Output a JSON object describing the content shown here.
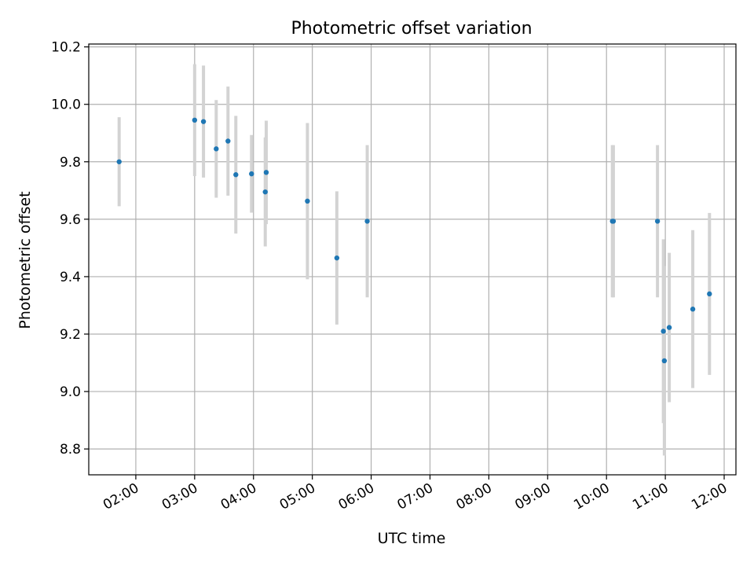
{
  "chart_data": {
    "type": "scatter",
    "title": "Photometric offset variation",
    "xlabel": "UTC time",
    "ylabel": "Photometric offset",
    "xlim": [
      "01:12",
      "12:12"
    ],
    "ylim": [
      8.71,
      10.21
    ],
    "grid": true,
    "x_ticks": [
      "02:00",
      "03:00",
      "04:00",
      "05:00",
      "06:00",
      "07:00",
      "08:00",
      "09:00",
      "10:00",
      "11:00",
      "12:00"
    ],
    "y_ticks": [
      "8.8",
      "9.0",
      "9.2",
      "9.4",
      "9.6",
      "9.8",
      "10.0",
      "10.2"
    ],
    "series": [
      {
        "marker_color": "#1f77b4",
        "errorbar_color": "#d3d3d3",
        "points": [
          {
            "x": "01:43",
            "y": 9.8,
            "err": 0.155
          },
          {
            "x": "03:00",
            "y": 9.945,
            "err": 0.195
          },
          {
            "x": "03:09",
            "y": 9.94,
            "err": 0.195
          },
          {
            "x": "03:22",
            "y": 9.845,
            "err": 0.17
          },
          {
            "x": "03:34",
            "y": 9.872,
            "err": 0.19
          },
          {
            "x": "03:42",
            "y": 9.755,
            "err": 0.205
          },
          {
            "x": "03:58",
            "y": 9.758,
            "err": 0.135
          },
          {
            "x": "04:12",
            "y": 9.695,
            "err": 0.19
          },
          {
            "x": "04:13",
            "y": 9.763,
            "err": 0.18
          },
          {
            "x": "04:55",
            "y": 9.663,
            "err": 0.272
          },
          {
            "x": "05:25",
            "y": 9.465,
            "err": 0.232
          },
          {
            "x": "05:56",
            "y": 9.593,
            "err": 0.265
          },
          {
            "x": "10:06",
            "y": 9.593,
            "err": 0.265
          },
          {
            "x": "10:07",
            "y": 9.593,
            "err": 0.265
          },
          {
            "x": "10:52",
            "y": 9.593,
            "err": 0.265
          },
          {
            "x": "10:58",
            "y": 9.21,
            "err": 0.32
          },
          {
            "x": "10:59",
            "y": 9.107,
            "err": 0.33
          },
          {
            "x": "11:04",
            "y": 9.223,
            "err": 0.26
          },
          {
            "x": "11:28",
            "y": 9.287,
            "err": 0.275
          },
          {
            "x": "11:45",
            "y": 9.34,
            "err": 0.282
          }
        ]
      }
    ]
  }
}
